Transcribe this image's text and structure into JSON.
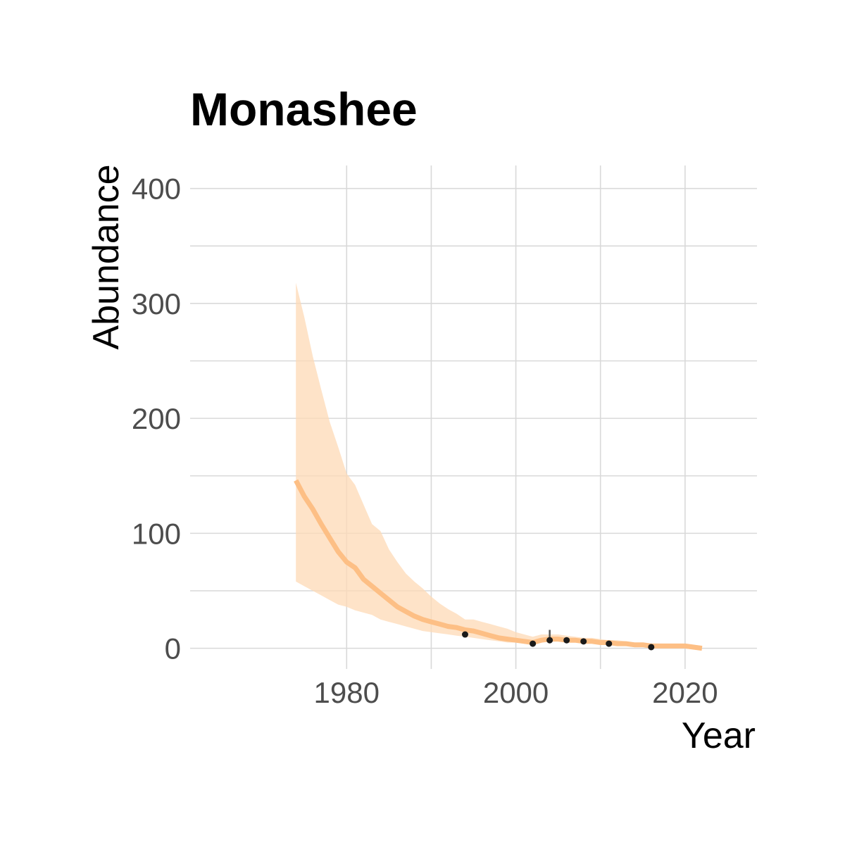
{
  "chart_data": {
    "type": "line",
    "title": "Monashee",
    "xlabel": "Year",
    "ylabel": "Abundance",
    "xlim": [
      1961.5,
      2028.5
    ],
    "ylim": [
      -18,
      420
    ],
    "x_ticks": [
      1980,
      2000,
      2020
    ],
    "y_ticks": [
      0,
      100,
      200,
      300,
      400
    ],
    "grid": true,
    "colors": {
      "trend": "#FDBF85",
      "band": "#FDD9B5",
      "points": "#1a1a1a",
      "grid": "#d9d9d9"
    },
    "trend": {
      "x": [
        1974,
        1975,
        1976,
        1977,
        1978,
        1979,
        1980,
        1981,
        1982,
        1983,
        1984,
        1985,
        1986,
        1987,
        1988,
        1989,
        1990,
        1991,
        1992,
        1993,
        1994,
        1995,
        1996,
        1997,
        1998,
        1999,
        2000,
        2001,
        2002,
        2003,
        2004,
        2005,
        2006,
        2007,
        2008,
        2009,
        2010,
        2011,
        2012,
        2013,
        2014,
        2015,
        2016,
        2017,
        2018,
        2019,
        2020,
        2021,
        2022
      ],
      "y": [
        146,
        132,
        121,
        108,
        96,
        84,
        75,
        70,
        60,
        54,
        48,
        42,
        36,
        32,
        28,
        25,
        23,
        21,
        19,
        18,
        16,
        15,
        13,
        11,
        9,
        8,
        7,
        6,
        5,
        7,
        8,
        8,
        7,
        7,
        6,
        6,
        5,
        5,
        4,
        4,
        3,
        3,
        2,
        2,
        2,
        2,
        2,
        1,
        0
      ]
    },
    "band": {
      "x": [
        1974,
        1975,
        1976,
        1977,
        1978,
        1979,
        1980,
        1981,
        1982,
        1983,
        1984,
        1985,
        1986,
        1987,
        1988,
        1989,
        1990,
        1991,
        1992,
        1993,
        1994,
        1995,
        1996,
        1997,
        1998,
        1999,
        2000,
        2001,
        2002,
        2003,
        2004,
        2005,
        2006,
        2007,
        2008,
        2009,
        2010,
        2011,
        2012,
        2013,
        2014,
        2015,
        2016,
        2017,
        2018,
        2019,
        2020,
        2021,
        2022
      ],
      "lower": [
        58,
        54,
        50,
        46,
        42,
        38,
        36,
        33,
        31,
        29,
        25,
        23,
        21,
        19,
        17,
        15,
        14,
        13,
        12,
        11,
        10,
        9,
        8,
        7,
        6,
        5,
        5,
        4,
        3,
        5,
        6,
        6,
        6,
        5,
        5,
        5,
        4,
        4,
        3,
        3,
        3,
        2,
        2,
        2,
        1,
        1,
        1,
        1,
        0
      ],
      "upper": [
        318,
        288,
        254,
        225,
        197,
        175,
        152,
        142,
        125,
        108,
        102,
        86,
        75,
        65,
        58,
        52,
        45,
        39,
        34,
        30,
        25,
        25,
        23,
        21,
        19,
        17,
        14,
        12,
        10,
        12,
        12,
        12,
        11,
        10,
        9,
        9,
        8,
        7,
        7,
        6,
        5,
        5,
        4,
        4,
        3,
        3,
        3,
        2,
        1
      ]
    },
    "points": {
      "x": [
        1994,
        2002,
        2004,
        2006,
        2008,
        2011,
        2016
      ],
      "y": [
        12,
        4,
        7,
        7,
        6,
        4,
        1
      ]
    },
    "error_bars": [
      {
        "x": 2004,
        "low": 7,
        "high": 16
      }
    ]
  }
}
